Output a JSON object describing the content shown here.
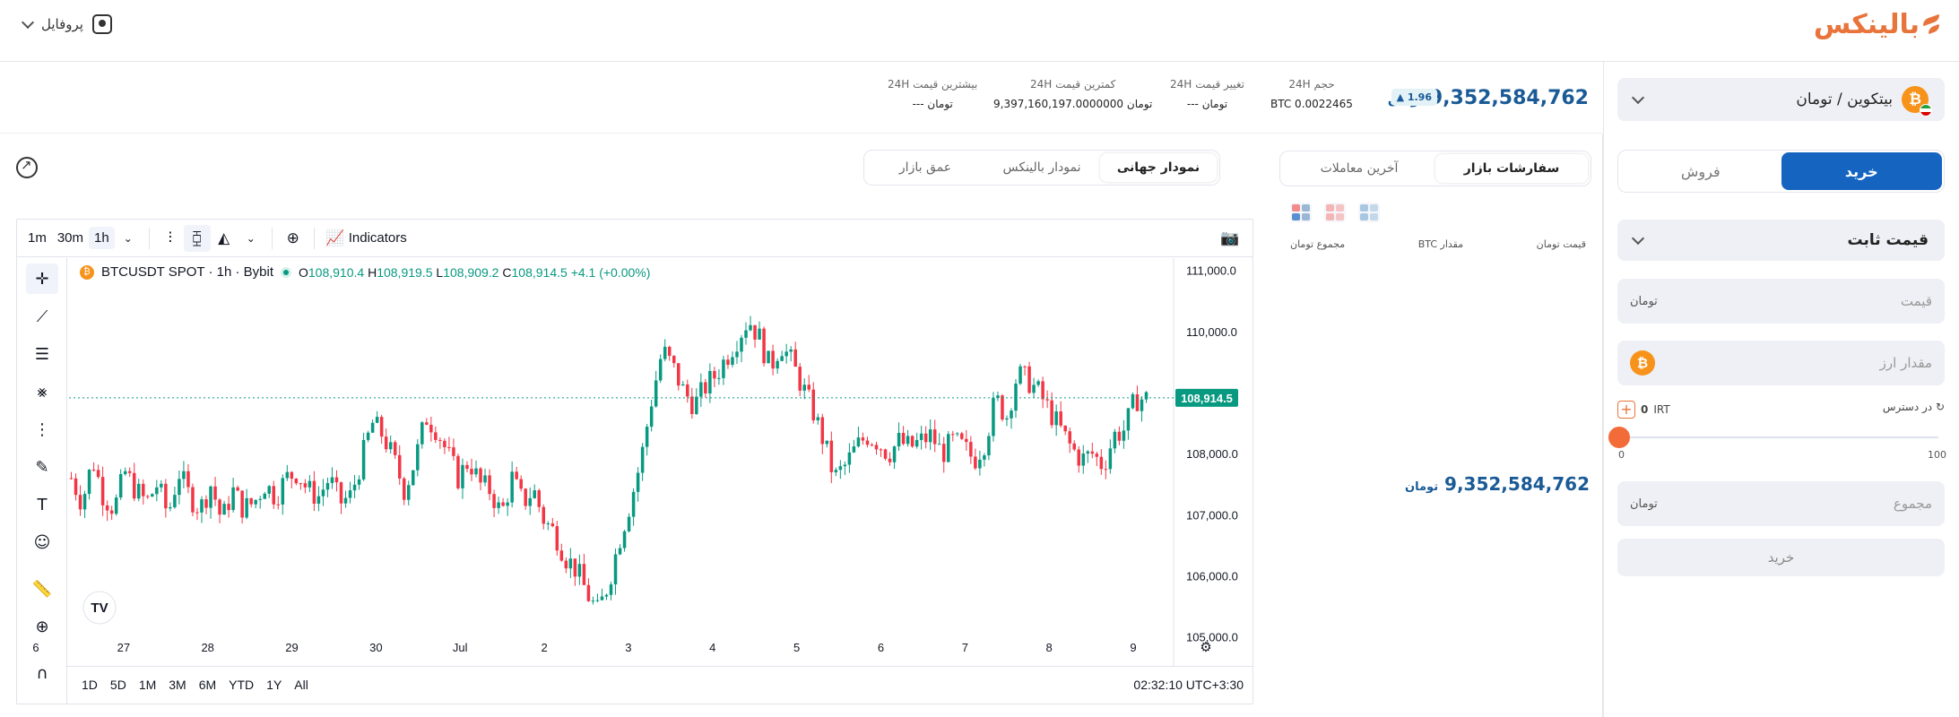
{
  "header": {
    "logo": "بالینکس",
    "profile_label": "پروفایل"
  },
  "pair": {
    "label": "بیتکوین / تومان",
    "coin_symbol": "₿"
  },
  "trade": {
    "buy_tab": "خرید",
    "sell_tab": "فروش",
    "order_type": "قیمت ثابت",
    "price_placeholder": "قیمت",
    "amount_placeholder": "مقدار ارز",
    "total_placeholder": "مجموع",
    "currency_unit": "تومان",
    "available_label": "در دسترس",
    "available_value": "0",
    "available_unit": "IRT",
    "slider_min": "0",
    "slider_max": "100",
    "slider_level": 0,
    "submit": "خرید"
  },
  "stats": {
    "last_price": "9,352,584,762",
    "unit": "تومان",
    "change_badge": "▲ 1.96",
    "volume_label": "حجم 24H",
    "volume_value": "BTC 0.0022465",
    "change_label": "تغییر قیمت 24H",
    "change_value": "---",
    "low_label": "کمترین قیمت 24H",
    "low_value": "9,397,160,197.0000000",
    "high_label": "بیشترین قیمت 24H",
    "high_value": "---"
  },
  "orderbook": {
    "tab_orders": "سفارشات بازار",
    "tab_trades": "آخرین معاملات",
    "col_price": "قیمت",
    "col_amount": "مقدار BTC",
    "col_total": "مجموع",
    "mid_price": "9,352,584,762"
  },
  "chart_tabs": {
    "global": "نمودار جهانی",
    "balinex": "نمودار بالینکس",
    "depth": "عمق بازار"
  },
  "tv": {
    "timeframes": [
      "1m",
      "30m",
      "1h"
    ],
    "indicators": "Indicators",
    "symbol": "BTCUSDT SPOT · 1h · Bybit",
    "o": "108,910.4",
    "h": "108,919.5",
    "l": "108,909.2",
    "c": "108,914.5",
    "chg": "+4.1 (+0.00%)",
    "ranges": [
      "1D",
      "5D",
      "1M",
      "3M",
      "6M",
      "YTD",
      "1Y",
      "All"
    ],
    "clock": "02:32:10 UTC+3:30"
  },
  "chart_data": {
    "type": "candlestick",
    "x_ticks": [
      "6",
      "27",
      "28",
      "29",
      "30",
      "Jul",
      "2",
      "3",
      "4",
      "5",
      "6",
      "7",
      "8",
      "9"
    ],
    "y_ticks": [
      "111,000.0",
      "110,000.0",
      "108,000.0",
      "107,000.0",
      "106,000.0",
      "105,000.0"
    ],
    "y_tick_values": [
      111000,
      110000,
      108000,
      107000,
      106000,
      105000
    ],
    "ylim": [
      104600,
      111200
    ],
    "last_price_label": "108,914.5",
    "last_price": 108914.5,
    "up_color": "#089981",
    "down_color": "#f23645",
    "path_closes": [
      107600,
      107200,
      107900,
      107300,
      107100,
      107700,
      107400,
      107200,
      107500,
      107000,
      107700,
      107300,
      107100,
      107500,
      106900,
      107400,
      107100,
      107200,
      107500,
      107300,
      107600,
      107700,
      107400,
      107300,
      107600,
      107200,
      107300,
      107900,
      108500,
      108300,
      107900,
      107400,
      107900,
      108600,
      108400,
      108000,
      107600,
      107900,
      107500,
      107400,
      107000,
      107600,
      107200,
      107400,
      106900,
      106700,
      106300,
      106100,
      105700,
      105400,
      105900,
      106600,
      107200,
      107900,
      108900,
      109700,
      109400,
      109000,
      108800,
      109100,
      109300,
      109600,
      109900,
      110200,
      109900,
      109400,
      109800,
      109500,
      109100,
      108700,
      108200,
      107600,
      107800,
      108100,
      108300,
      108200,
      108000,
      108200,
      108100,
      108200,
      108300,
      108000,
      108200,
      108100,
      107900,
      108200,
      108900,
      108600,
      109300,
      109200,
      109000,
      108700,
      108400,
      108100,
      107900,
      108000,
      107800,
      108300,
      108400,
      108900,
      108900
    ]
  }
}
